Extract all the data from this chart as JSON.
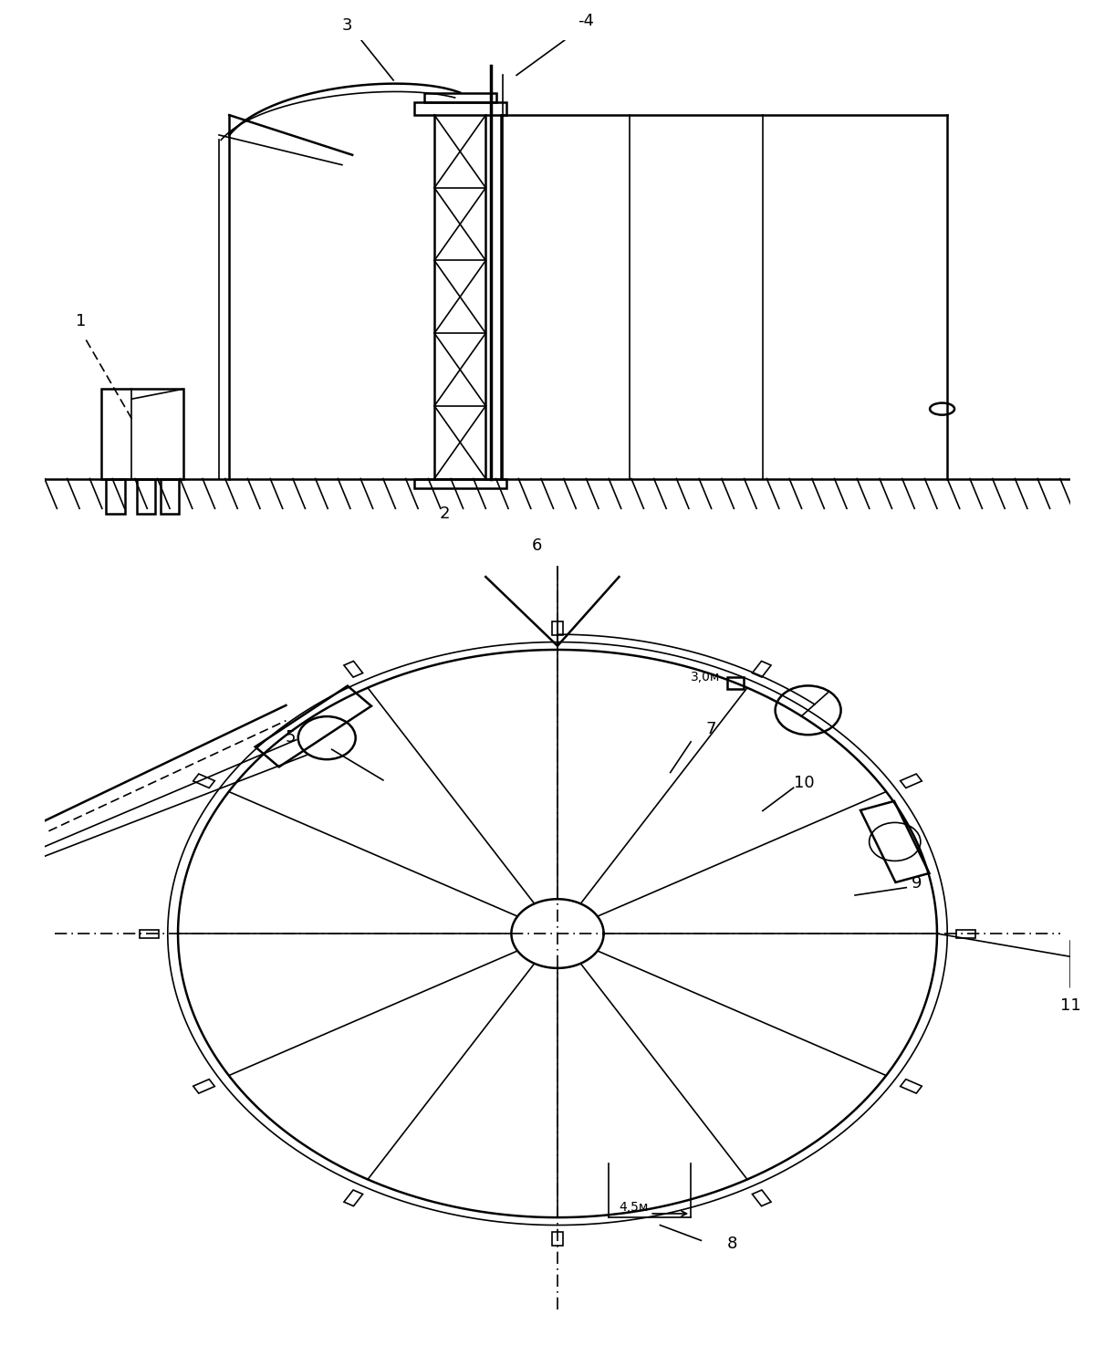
{
  "bg_color": "#ffffff",
  "line_color": "#000000",
  "fig_width": 12.22,
  "fig_height": 14.75,
  "dpi": 100
}
